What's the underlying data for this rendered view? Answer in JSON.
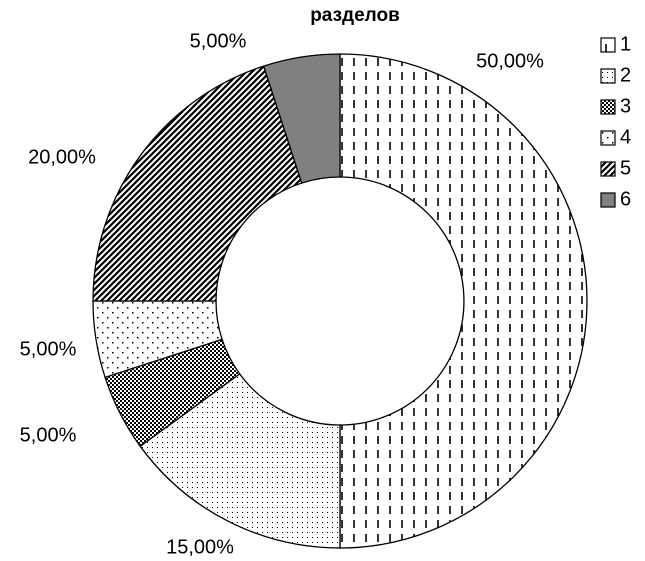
{
  "chart_data": {
    "type": "donut",
    "title": "разделов",
    "series": [
      {
        "name": "1",
        "value": 50,
        "value_label": "50,00%",
        "pattern": "vertical-dashes"
      },
      {
        "name": "2",
        "value": 15,
        "value_label": "15,00%",
        "pattern": "fine-dots"
      },
      {
        "name": "3",
        "value": 5,
        "value_label": "5,00%",
        "pattern": "checker"
      },
      {
        "name": "4",
        "value": 5,
        "value_label": "5,00%",
        "pattern": "sparse-dots"
      },
      {
        "name": "5",
        "value": 20,
        "value_label": "20,00%",
        "pattern": "diagonal"
      },
      {
        "name": "6",
        "value": 5,
        "value_label": "5,00%",
        "pattern": "solid",
        "color": "#808080"
      }
    ],
    "legend": "right"
  }
}
